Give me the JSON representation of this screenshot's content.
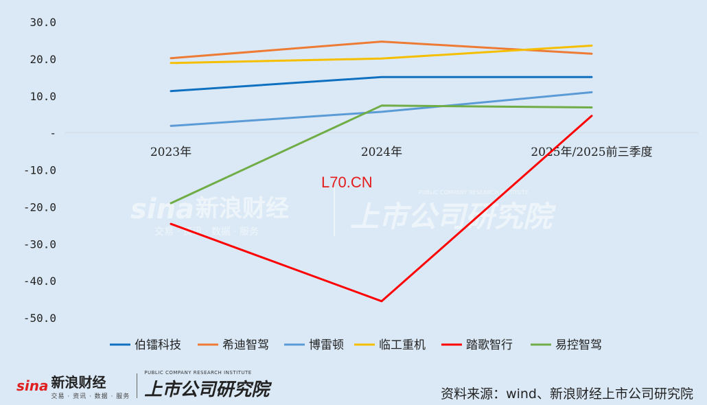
{
  "chart_data": {
    "type": "line",
    "categories": [
      "2023年",
      "2024年",
      "2025年/2025前三季度"
    ],
    "ylim": [
      -50,
      30
    ],
    "yticks": [
      30,
      20,
      10,
      0,
      -10,
      -20,
      -30,
      -40,
      -50
    ],
    "ytick_labels": [
      "30.0",
      "20.0",
      "10.0",
      "-",
      "-10.0",
      "-20.0",
      "-30.0",
      "-40.0",
      "-50.0"
    ],
    "grid": false,
    "legend_position": "bottom",
    "series": [
      {
        "name": "伯镭科技",
        "color": "#1070c0",
        "values": [
          11.3,
          15.1,
          15.1
        ]
      },
      {
        "name": "希迪智驾",
        "color": "#ee7b33",
        "values": [
          20.2,
          24.7,
          21.4
        ]
      },
      {
        "name": "博雷顿",
        "color": "#5b9bd5",
        "values": [
          1.9,
          5.7,
          11.0
        ]
      },
      {
        "name": "临工重机",
        "color": "#f5bf00",
        "values": [
          18.9,
          20.1,
          23.6
        ]
      },
      {
        "name": "踏歌智行",
        "color": "#ff0000",
        "values": [
          -24.6,
          -45.5,
          4.6
        ]
      },
      {
        "name": "易控智驾",
        "color": "#70ad47",
        "values": [
          -19.0,
          7.4,
          6.9
        ]
      }
    ],
    "annotation": "L70.CN"
  },
  "watermark": {
    "brand": "新浪财经",
    "sub": "交易 · 资讯 · 数据 · 服务",
    "institute": "上市公司研究院",
    "institute_en": "PUBLIC COMPANY RESEARCH INSTITUTE"
  },
  "footer": {
    "sina": "sina",
    "brand": "新浪财经",
    "sub": "交易 · 资讯 · 数据 · 服务",
    "institute": "上市公司研究院",
    "institute_en": "PUBLIC COMPANY RESEARCH INSTITUTE",
    "source": "资料来源：wind、新浪财经上市公司研究院"
  }
}
